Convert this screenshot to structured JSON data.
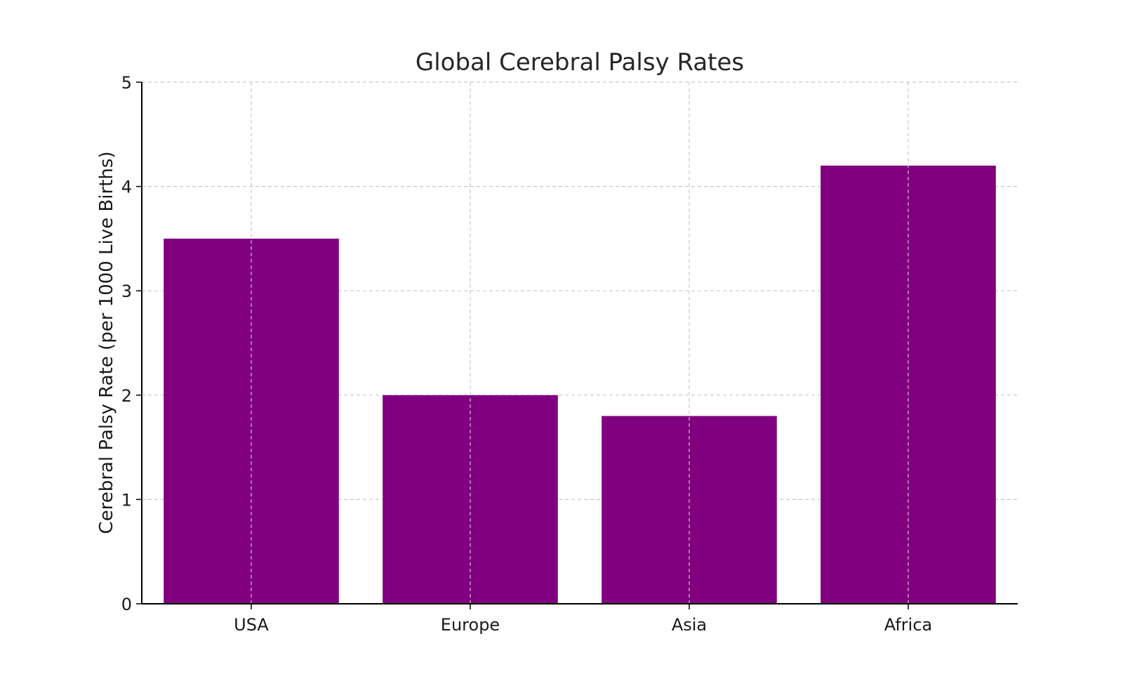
{
  "chart_data": {
    "type": "bar",
    "title": "Global Cerebral Palsy Rates",
    "xlabel": "",
    "ylabel": "Cerebral Palsy Rate (per 1000 Live Births)",
    "categories": [
      "USA",
      "Europe",
      "Asia",
      "Africa"
    ],
    "values": [
      3.5,
      2.0,
      1.8,
      4.2
    ],
    "ylim": [
      0,
      5
    ],
    "yticks": [
      "0",
      "1",
      "2",
      "3",
      "4",
      "5"
    ],
    "grid": true,
    "legend": "none",
    "colors": {
      "bar": "#800080"
    }
  }
}
